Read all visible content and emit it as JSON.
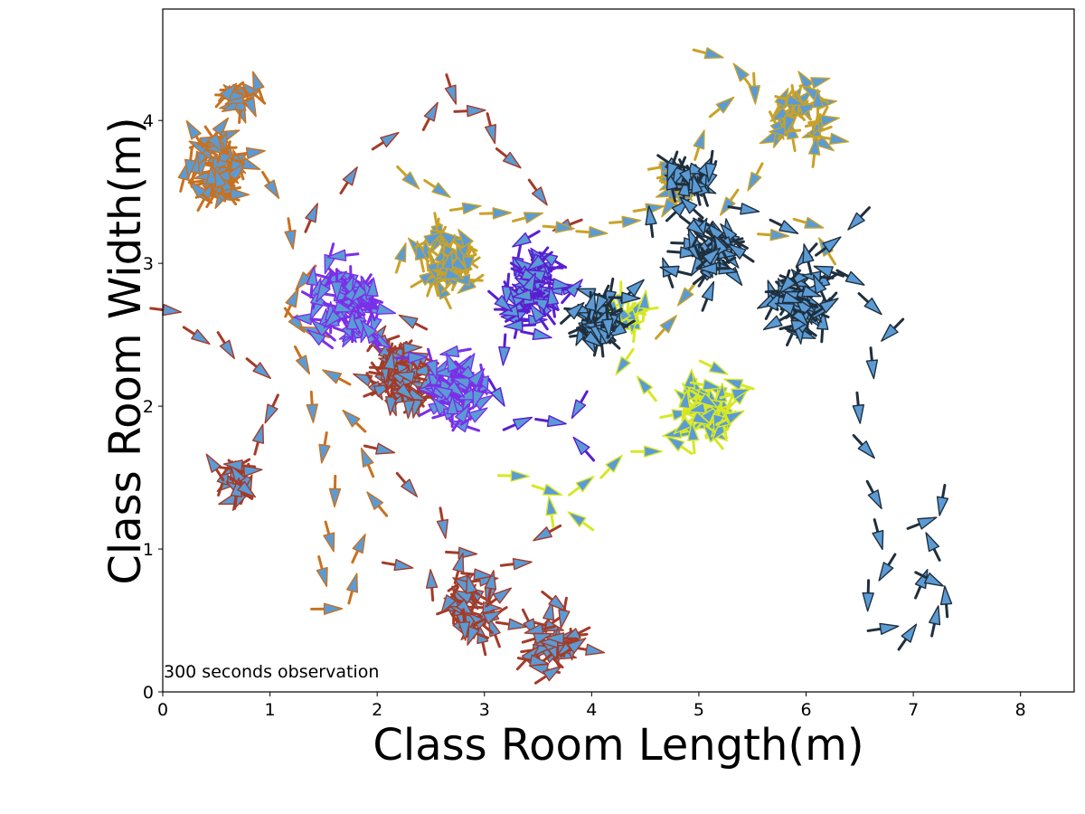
{
  "chart_data": {
    "type": "scatter",
    "marker": "arrow-quiver",
    "title": "",
    "xlabel": "Class Room Length(m)",
    "ylabel": "Class Room Width(m)",
    "xlim": [
      0,
      8.5
    ],
    "ylim": [
      0,
      4.78
    ],
    "xticks": [
      0,
      1,
      2,
      3,
      4,
      5,
      6,
      7,
      8
    ],
    "yticks": [
      0,
      1,
      2,
      3,
      4
    ],
    "grid": false,
    "legend": "none",
    "annotation": "300 seconds observation",
    "arrow_fill": "#5b9bd5",
    "series": [
      {
        "color": "#c8711f",
        "clusters": [
          {
            "center": [
              0.5,
              3.65
            ],
            "spread": 0.14,
            "count": 55
          },
          {
            "center": [
              0.72,
              4.15
            ],
            "spread": 0.07,
            "count": 14
          }
        ],
        "path": [
          [
            0.7,
            3.7
          ],
          [
            1.0,
            3.55
          ],
          [
            1.2,
            3.2
          ],
          [
            1.35,
            2.9
          ],
          [
            1.25,
            2.6
          ],
          [
            1.3,
            2.3
          ],
          [
            1.4,
            2.0
          ],
          [
            1.5,
            1.7
          ],
          [
            1.6,
            1.4
          ],
          [
            1.55,
            1.1
          ],
          [
            1.5,
            0.85
          ],
          [
            1.55,
            0.6
          ],
          [
            1.75,
            0.7
          ],
          [
            1.85,
            1.0
          ],
          [
            2.0,
            1.3
          ],
          [
            1.9,
            1.6
          ],
          [
            1.8,
            1.9
          ],
          [
            1.6,
            2.2
          ],
          [
            1.4,
            2.5
          ],
          [
            1.2,
            2.75
          ]
        ]
      },
      {
        "color": "#a33b28",
        "clusters": [
          {
            "center": [
              2.25,
              2.2
            ],
            "spread": 0.14,
            "count": 60
          },
          {
            "center": [
              0.7,
              1.48
            ],
            "spread": 0.09,
            "count": 18
          },
          {
            "center": [
              2.85,
              0.6
            ],
            "spread": 0.15,
            "count": 35
          },
          {
            "center": [
              3.7,
              0.33
            ],
            "spread": 0.14,
            "count": 30
          }
        ],
        "path": [
          [
            0.05,
            2.65
          ],
          [
            0.3,
            2.5
          ],
          [
            0.6,
            2.4
          ],
          [
            0.9,
            2.25
          ],
          [
            1.0,
            2.0
          ],
          [
            0.9,
            1.75
          ],
          [
            1.4,
            3.3
          ],
          [
            1.75,
            3.6
          ],
          [
            2.1,
            3.85
          ],
          [
            2.5,
            4.05
          ],
          [
            2.7,
            4.2
          ],
          [
            2.85,
            4.05
          ],
          [
            3.05,
            3.95
          ],
          [
            3.25,
            3.75
          ],
          [
            3.5,
            3.5
          ],
          [
            3.75,
            3.25
          ],
          [
            2.0,
            1.7
          ],
          [
            2.3,
            1.45
          ],
          [
            2.6,
            1.2
          ],
          [
            2.8,
            0.95
          ],
          [
            3.0,
            0.8
          ],
          [
            3.3,
            0.9
          ],
          [
            3.6,
            1.1
          ],
          [
            2.2,
            0.9
          ],
          [
            2.5,
            0.75
          ]
        ]
      },
      {
        "color": "#7b2fe8",
        "clusters": [
          {
            "center": [
              1.75,
              2.72
            ],
            "spread": 0.15,
            "count": 70
          },
          {
            "center": [
              2.7,
              2.12
            ],
            "spread": 0.13,
            "count": 45
          }
        ],
        "path": [
          [
            2.0,
            2.45
          ],
          [
            2.3,
            2.35
          ],
          [
            2.55,
            2.2
          ]
        ]
      },
      {
        "color": "#5a1fd0",
        "clusters": [
          {
            "center": [
              3.45,
              2.82
            ],
            "spread": 0.14,
            "count": 60
          }
        ],
        "path": [
          [
            3.2,
            2.4
          ],
          [
            3.1,
            2.1
          ],
          [
            3.3,
            1.9
          ],
          [
            3.6,
            1.9
          ],
          [
            3.9,
            2.0
          ],
          [
            3.9,
            1.7
          ],
          [
            3.3,
            2.6
          ]
        ]
      },
      {
        "color": "#c9a227",
        "clusters": [
          {
            "center": [
              2.65,
              3.02
            ],
            "spread": 0.13,
            "count": 55
          },
          {
            "center": [
              5.95,
              4.05
            ],
            "spread": 0.12,
            "count": 35
          },
          {
            "center": [
              4.85,
              3.55
            ],
            "spread": 0.1,
            "count": 15
          }
        ],
        "path": [
          [
            2.3,
            3.6
          ],
          [
            2.55,
            3.5
          ],
          [
            2.85,
            3.4
          ],
          [
            3.1,
            3.35
          ],
          [
            3.4,
            3.3
          ],
          [
            3.7,
            3.25
          ],
          [
            4.0,
            3.2
          ],
          [
            4.3,
            3.3
          ],
          [
            4.55,
            3.4
          ],
          [
            4.8,
            3.6
          ],
          [
            5.0,
            3.85
          ],
          [
            5.2,
            4.1
          ],
          [
            5.4,
            4.3
          ],
          [
            5.1,
            4.45
          ],
          [
            5.5,
            4.2
          ],
          [
            5.7,
            3.9
          ],
          [
            5.5,
            3.6
          ],
          [
            5.3,
            3.4
          ],
          [
            5.1,
            3.1
          ],
          [
            4.9,
            2.8
          ],
          [
            4.7,
            2.55
          ],
          [
            5.7,
            3.2
          ],
          [
            6.0,
            3.3
          ],
          [
            6.2,
            3.1
          ]
        ]
      },
      {
        "color": "#d8e823",
        "clusters": [
          {
            "center": [
              5.1,
              1.98
            ],
            "spread": 0.12,
            "count": 50
          },
          {
            "center": [
              4.35,
              2.65
            ],
            "spread": 0.08,
            "count": 12
          }
        ],
        "path": [
          [
            3.3,
            1.5
          ],
          [
            3.6,
            1.4
          ],
          [
            3.9,
            1.45
          ],
          [
            4.2,
            1.6
          ],
          [
            4.5,
            1.7
          ],
          [
            4.8,
            1.75
          ],
          [
            4.5,
            2.1
          ],
          [
            4.3,
            2.3
          ],
          [
            3.9,
            1.2
          ],
          [
            3.6,
            1.25
          ]
        ]
      },
      {
        "color": "#1f2f3d",
        "clusters": [
          {
            "center": [
              4.05,
              2.6
            ],
            "spread": 0.1,
            "count": 35
          },
          {
            "center": [
              5.1,
              3.05
            ],
            "spread": 0.14,
            "count": 40
          },
          {
            "center": [
              5.95,
              2.72
            ],
            "spread": 0.14,
            "count": 55
          },
          {
            "center": [
              4.9,
              3.55
            ],
            "spread": 0.1,
            "count": 20
          }
        ],
        "path": [
          [
            4.4,
            2.8
          ],
          [
            4.7,
            2.95
          ],
          [
            4.55,
            3.3
          ],
          [
            4.75,
            3.7
          ],
          [
            5.05,
            3.55
          ],
          [
            5.4,
            3.4
          ],
          [
            5.8,
            3.25
          ],
          [
            6.2,
            3.1
          ],
          [
            6.5,
            3.3
          ],
          [
            6.4,
            2.9
          ],
          [
            6.6,
            2.7
          ],
          [
            6.8,
            2.55
          ],
          [
            6.6,
            2.3
          ],
          [
            6.5,
            2.0
          ],
          [
            6.55,
            1.7
          ],
          [
            6.65,
            1.4
          ],
          [
            6.7,
            1.1
          ],
          [
            6.75,
            0.85
          ],
          [
            6.6,
            0.65
          ],
          [
            6.7,
            0.45
          ],
          [
            6.95,
            0.4
          ],
          [
            7.2,
            0.5
          ],
          [
            7.1,
            0.75
          ],
          [
            7.2,
            1.0
          ],
          [
            7.1,
            1.2
          ],
          [
            7.25,
            1.35
          ],
          [
            7.15,
            0.8
          ],
          [
            7.3,
            0.65
          ]
        ]
      }
    ]
  }
}
